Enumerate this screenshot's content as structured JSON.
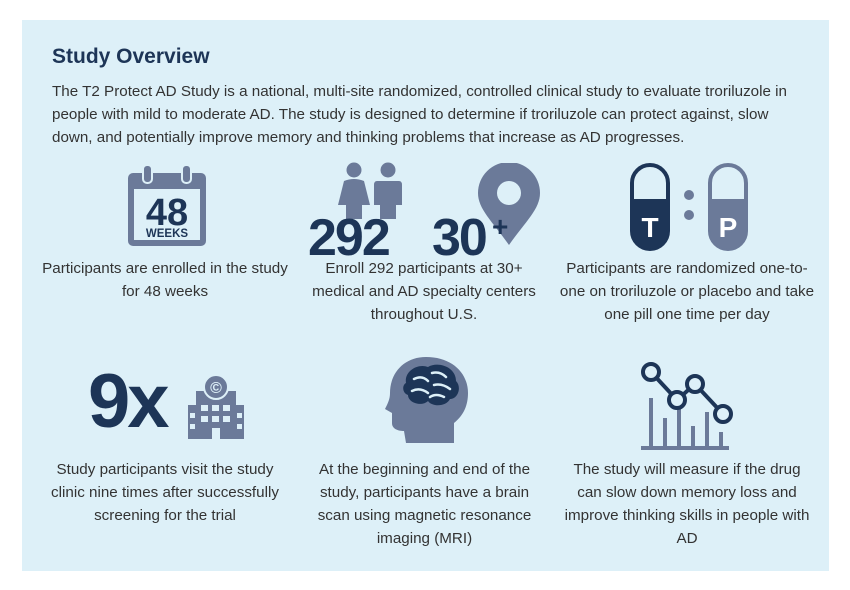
{
  "panel": {
    "title": "Study Overview",
    "intro": "The T2 Protect AD Study is a national, multi-site randomized, controlled clinical study to evaluate troriluzole in people with mild to moderate AD. The study is designed to determine if troriluzole can protect against, slow down, and potentially improve memory and thinking problems that increase as AD progresses."
  },
  "colors": {
    "navy": "#1d3557",
    "slate": "#6b7a99",
    "background": "#ddf0f8"
  },
  "cards": [
    {
      "icon": "calendar-icon",
      "calendar_number": "48",
      "calendar_unit": "WEEKS",
      "caption": "Participants are enrolled in the study for 48 weeks"
    },
    {
      "icon": "people-location-icon",
      "big_number_1": "292",
      "big_number_2": "30",
      "plus": "+",
      "caption": "Enroll 292 participants at 30+ medical and AD specialty centers throughout U.S."
    },
    {
      "icon": "pill-capsules-icon",
      "pill_left": "T",
      "pill_right": "P",
      "caption": "Participants are randomized one-to-one on troriluzole or placebo and take one pill one time per day"
    },
    {
      "icon": "clinic-building-icon",
      "big_number": "9x",
      "caption": "Study participants visit the study clinic nine times after successfully screening for the trial"
    },
    {
      "icon": "head-brain-icon",
      "caption": "At the beginning and end of the study, participants have a brain scan using magnetic resonance imaging (MRI)"
    },
    {
      "icon": "line-chart-icon",
      "caption": "The study will measure if the drug can slow down memory loss and improve thinking skills in people with AD"
    }
  ]
}
